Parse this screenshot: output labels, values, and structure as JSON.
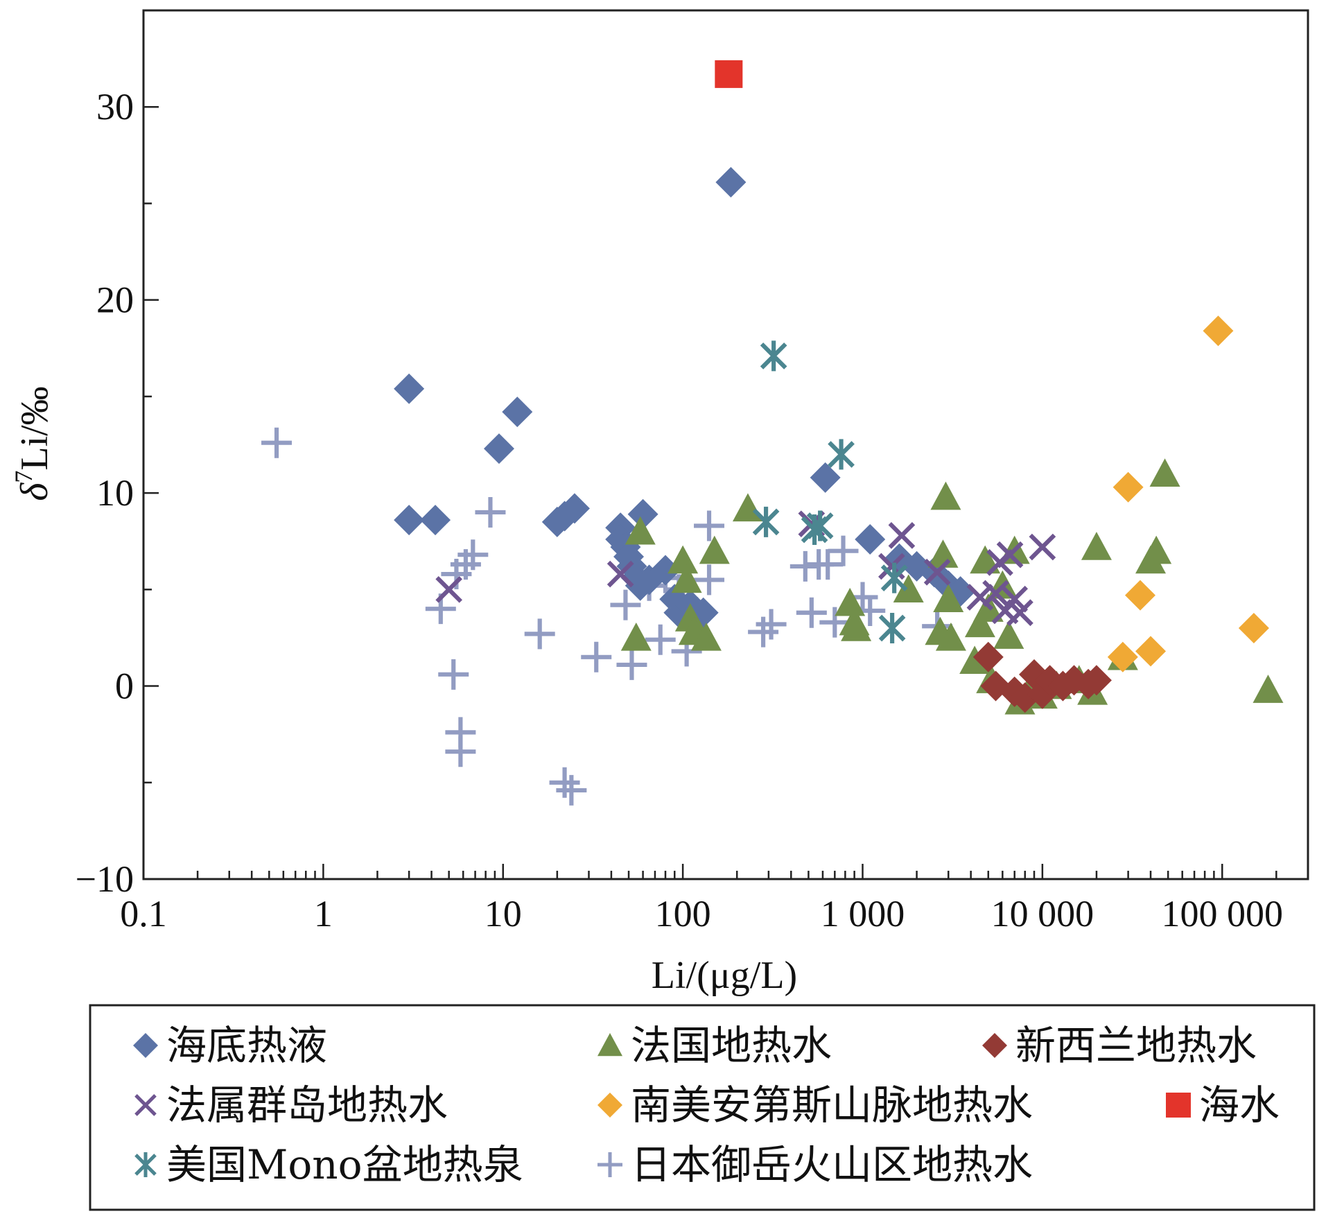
{
  "chart_data": {
    "type": "scatter",
    "xscale": "log",
    "xlim": [
      0.1,
      300000
    ],
    "ylim": [
      -10,
      35
    ],
    "xlabel": "Li/(μg/L)",
    "ylabel_main": "δ",
    "ylabel_sup": "7",
    "ylabel_tail": "Li/‰",
    "x_ticks": [
      {
        "value": 0.1,
        "label": "0.1"
      },
      {
        "value": 1,
        "label": "1"
      },
      {
        "value": 10,
        "label": "10"
      },
      {
        "value": 100,
        "label": "100"
      },
      {
        "value": 1000,
        "label": "1 000"
      },
      {
        "value": 10000,
        "label": "10 000"
      },
      {
        "value": 100000,
        "label": "100 000"
      }
    ],
    "y_ticks": [
      {
        "value": -10,
        "label": "−10"
      },
      {
        "value": 0,
        "label": "0"
      },
      {
        "value": 10,
        "label": "10"
      },
      {
        "value": 20,
        "label": "20"
      },
      {
        "value": 30,
        "label": "30"
      }
    ],
    "legend_placement": "bottom",
    "series": [
      {
        "name": "海底热液",
        "marker": "diamond",
        "color": "#5b73a6",
        "points": [
          [
            3,
            15.4
          ],
          [
            3,
            8.6
          ],
          [
            4.2,
            8.6
          ],
          [
            9.5,
            12.3
          ],
          [
            12,
            14.2
          ],
          [
            20,
            8.5
          ],
          [
            22,
            8.8
          ],
          [
            25,
            9.2
          ],
          [
            45,
            8.2
          ],
          [
            45,
            7.6
          ],
          [
            48,
            7.2
          ],
          [
            50,
            6.7
          ],
          [
            52,
            6.2
          ],
          [
            55,
            5.6
          ],
          [
            58,
            5.2
          ],
          [
            60,
            8.9
          ],
          [
            65,
            5.5
          ],
          [
            80,
            6
          ],
          [
            90,
            4.5
          ],
          [
            95,
            3.8
          ],
          [
            110,
            4.2
          ],
          [
            130,
            3.8
          ],
          [
            185,
            26.1
          ],
          [
            620,
            10.8
          ],
          [
            1100,
            7.6
          ],
          [
            1600,
            6.6
          ],
          [
            2000,
            6.2
          ],
          [
            2500,
            5.9
          ],
          [
            3000,
            5.2
          ],
          [
            3500,
            4.9
          ]
        ]
      },
      {
        "name": "法国地热水",
        "marker": "triangle",
        "color": "#728f4a",
        "points": [
          [
            55,
            2.5
          ],
          [
            58,
            8
          ],
          [
            100,
            6.5
          ],
          [
            105,
            5.5
          ],
          [
            110,
            3.5
          ],
          [
            115,
            2.8
          ],
          [
            135,
            2.5
          ],
          [
            150,
            7
          ],
          [
            230,
            9.2
          ],
          [
            850,
            4.3
          ],
          [
            900,
            3.3
          ],
          [
            920,
            3
          ],
          [
            1800,
            5
          ],
          [
            2700,
            2.8
          ],
          [
            2800,
            6.8
          ],
          [
            2900,
            9.8
          ],
          [
            3000,
            4.5
          ],
          [
            3100,
            2.5
          ],
          [
            4200,
            1.3
          ],
          [
            4500,
            3.2
          ],
          [
            4800,
            6.5
          ],
          [
            5000,
            4
          ],
          [
            5200,
            0.3
          ],
          [
            6000,
            5.2
          ],
          [
            6500,
            2.6
          ],
          [
            7000,
            7
          ],
          [
            7500,
            -0.8
          ],
          [
            8500,
            -0.2
          ],
          [
            10000,
            -0.5
          ],
          [
            12000,
            0
          ],
          [
            16000,
            0.3
          ],
          [
            19000,
            -0.3
          ],
          [
            20000,
            7.2
          ],
          [
            28000,
            1.5
          ],
          [
            40000,
            6.5
          ],
          [
            43000,
            7
          ],
          [
            48000,
            11
          ],
          [
            180000,
            -0.2
          ]
        ]
      },
      {
        "name": "新西兰地热水",
        "marker": "diamond",
        "color": "#933a35",
        "points": [
          [
            5000,
            1.5
          ],
          [
            5500,
            0
          ],
          [
            7000,
            -0.3
          ],
          [
            8000,
            -0.6
          ],
          [
            9000,
            0.6
          ],
          [
            10000,
            -0.4
          ],
          [
            11000,
            0.3
          ],
          [
            13000,
            0
          ],
          [
            15000,
            0.3
          ],
          [
            18000,
            0.1
          ],
          [
            20000,
            0.3
          ]
        ]
      },
      {
        "name": "法属群岛地热水",
        "marker": "cross",
        "color": "#6e5590",
        "points": [
          [
            5,
            5
          ],
          [
            45,
            5.8
          ],
          [
            520,
            8.4
          ],
          [
            1450,
            6.2
          ],
          [
            1650,
            7.8
          ],
          [
            2600,
            5.9
          ],
          [
            4500,
            4.6
          ],
          [
            5500,
            4.8
          ],
          [
            5800,
            6.4
          ],
          [
            6200,
            3.9
          ],
          [
            6600,
            6.8
          ],
          [
            7000,
            4.5
          ],
          [
            7500,
            3.8
          ],
          [
            10000,
            7.2
          ]
        ]
      },
      {
        "name": "南美安第斯山脉地热水",
        "marker": "diamond",
        "color": "#f0a935",
        "points": [
          [
            28000,
            1.5
          ],
          [
            30000,
            10.3
          ],
          [
            35000,
            4.7
          ],
          [
            40000,
            1.8
          ],
          [
            95000,
            18.4
          ],
          [
            150000,
            3
          ]
        ]
      },
      {
        "name": "海水",
        "marker": "square",
        "color": "#e3342b",
        "points": [
          [
            180,
            31.7
          ]
        ]
      },
      {
        "name": "美国Mono盆地热泉",
        "marker": "asterisk",
        "color": "#4b8690",
        "points": [
          [
            290,
            8.5
          ],
          [
            320,
            17.1
          ],
          [
            540,
            8.1
          ],
          [
            580,
            8.3
          ],
          [
            760,
            12
          ],
          [
            1460,
            3
          ],
          [
            1500,
            5.6
          ]
        ]
      },
      {
        "name": "日本御岳火山区地热水",
        "marker": "plus",
        "color": "#929cc2",
        "points": [
          [
            0.55,
            12.6
          ],
          [
            4.5,
            4
          ],
          [
            5.3,
            0.6
          ],
          [
            5.5,
            5.8
          ],
          [
            5.8,
            -2.4
          ],
          [
            5.8,
            -3.4
          ],
          [
            6.2,
            6.3
          ],
          [
            6.8,
            6.8
          ],
          [
            8.5,
            9
          ],
          [
            16,
            2.7
          ],
          [
            22,
            -5
          ],
          [
            24,
            -5.4
          ],
          [
            33,
            1.5
          ],
          [
            48,
            4.2
          ],
          [
            52,
            1.1
          ],
          [
            65,
            5.2
          ],
          [
            75,
            2.4
          ],
          [
            80,
            5.6
          ],
          [
            95,
            5
          ],
          [
            100,
            4.5
          ],
          [
            105,
            1.8
          ],
          [
            140,
            8.3
          ],
          [
            140,
            5.5
          ],
          [
            280,
            2.8
          ],
          [
            310,
            3.2
          ],
          [
            480,
            6.2
          ],
          [
            520,
            3.8
          ],
          [
            570,
            6.3
          ],
          [
            640,
            6.3
          ],
          [
            700,
            3.3
          ],
          [
            780,
            7
          ],
          [
            1000,
            4.6
          ],
          [
            1100,
            3.9
          ],
          [
            2600,
            3.1
          ]
        ]
      }
    ]
  }
}
